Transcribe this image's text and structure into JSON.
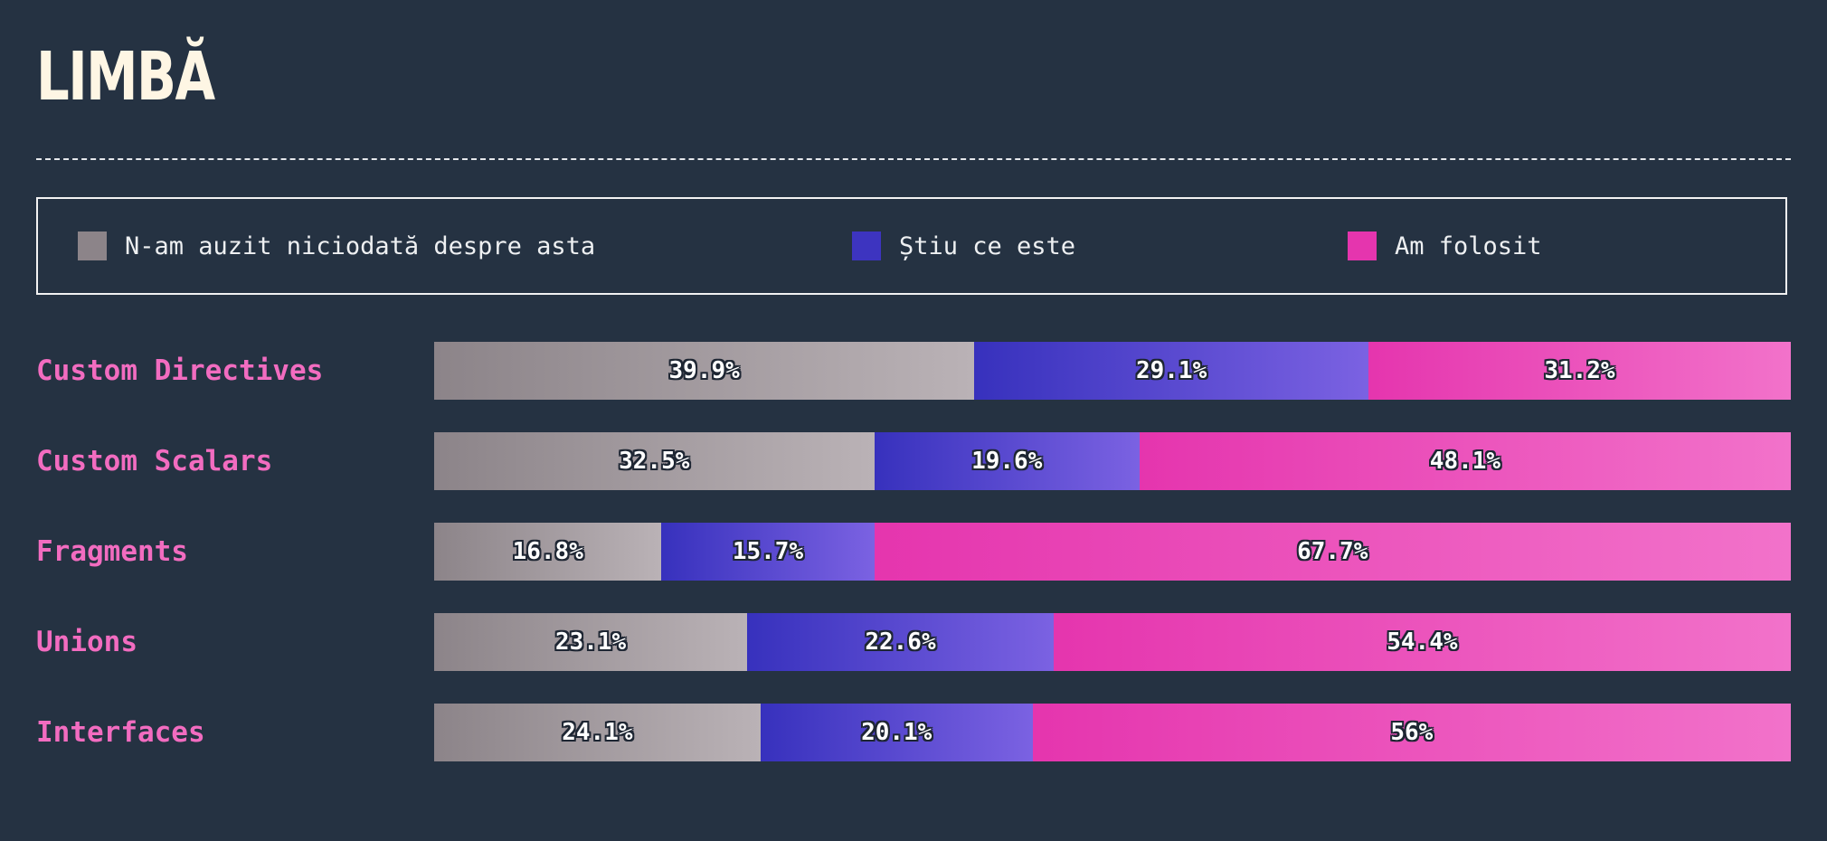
{
  "title": "LIMBĂ",
  "legend": [
    {
      "key": "never",
      "label": "N-am auzit niciodată despre asta",
      "color": "#8c8489"
    },
    {
      "key": "know",
      "label": "Știu ce este",
      "color": "#3d34c0"
    },
    {
      "key": "used",
      "label": "Am folosit",
      "color": "#e535ae"
    }
  ],
  "chart_data": {
    "type": "bar",
    "stacked": true,
    "orientation": "horizontal",
    "normalized": true,
    "categories": [
      "Custom Directives",
      "Custom Scalars",
      "Fragments",
      "Unions",
      "Interfaces"
    ],
    "series": [
      {
        "name": "N-am auzit niciodată despre asta",
        "values": [
          39.9,
          32.5,
          16.8,
          23.1,
          24.1
        ],
        "labels": [
          "39.9%",
          "32.5%",
          "16.8%",
          "23.1%",
          "24.1%"
        ]
      },
      {
        "name": "Știu ce este",
        "values": [
          29.1,
          19.6,
          15.7,
          22.6,
          20.1
        ],
        "labels": [
          "29.1%",
          "19.6%",
          "15.7%",
          "22.6%",
          "20.1%"
        ]
      },
      {
        "name": "Am folosit",
        "values": [
          31.2,
          48.1,
          67.7,
          54.4,
          56
        ],
        "labels": [
          "31.2%",
          "48.1%",
          "67.7%",
          "54.4%",
          "56%"
        ]
      }
    ],
    "xlim": [
      0,
      100
    ],
    "legend": "top",
    "grid": false
  }
}
